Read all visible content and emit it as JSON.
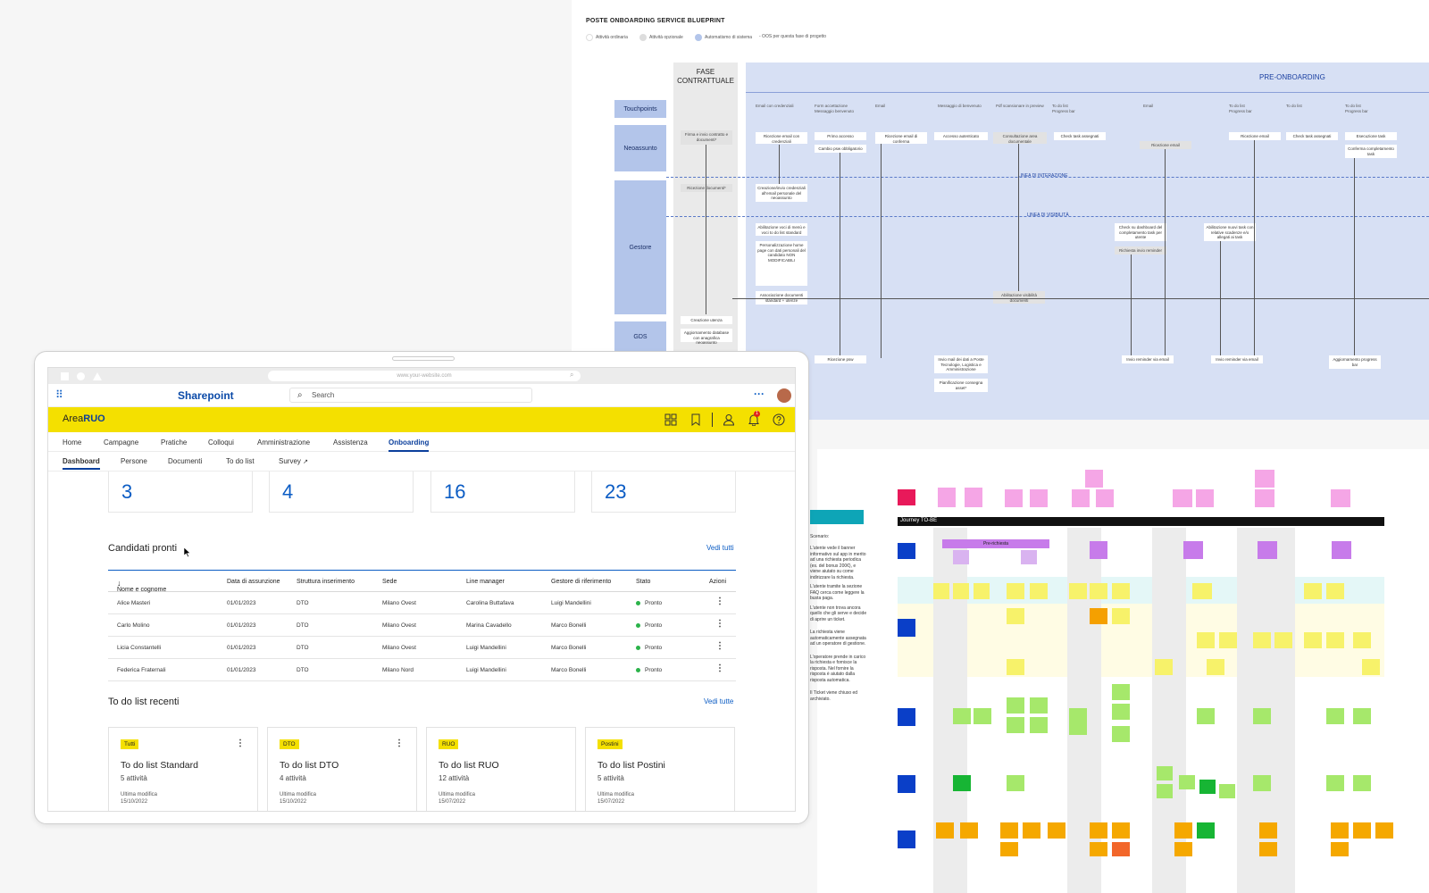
{
  "blueprint": {
    "title": "POSTE ONBOARDING SERVICE BLUEPRINT",
    "legend": [
      "Attività ordinaria",
      "Attività opzionale",
      "Automatismo di sistema",
      "- OOS per questa fase di progetto"
    ],
    "phases": {
      "contract": "FASE CONTRATTUALE",
      "pre": "PRE-ONBOARDING"
    },
    "lanes": [
      "Touchpoints",
      "Neoassunto",
      "Gestore",
      "GDS"
    ],
    "line_interaction": "LINEA DI INTERAZIONE",
    "line_visibility": "LINEA DI VISIBILITÀ",
    "touchpoints": [
      "Email con credenziali",
      "Form accettazione Messaggio benvenuto",
      "Email",
      "Messaggio di benvenuto",
      "Pdf scansionare in preview",
      "To do list Progress bar",
      "Email",
      "To do list Progress bar",
      "To do list",
      "To do list Progress bar"
    ],
    "cards": {
      "c1": "Firma e invio contratto e documenti*",
      "c2": "Ricezione email con credenziali",
      "c3": "Primo accesso",
      "c4": "Cambio psw obbligatorio",
      "c5": "Ricezione email di conferma",
      "c6": "Accesso autenticato",
      "c7": "Consultazione area documentale",
      "c8": "Check task assegnati",
      "c9": "Ricezione email",
      "c10": "Ricezione email",
      "c11": "Check task assegnati",
      "c12": "Esecuzione task",
      "c13": "Conferma completamento task",
      "g1": "Ricezione documenti*",
      "g2": "Creazione/invio credenziali all'email personale del neoassunto",
      "g3": "Abilitazione voci di menù e voci to do list standard",
      "g4": "Personalizzazione home page con dati personali del candidato NON MODIFICABILI",
      "g5": "Associazione documenti standard + utenze",
      "g6": "Check su dashboard del completamento task per utente",
      "g7": "Richiesta invio reminder",
      "g8": "Abilitazione nuovi task con relative scadenze e/o allegati ai task",
      "g9": "Abilitazione visibilità documenti",
      "s1": "Creazione utenza",
      "s2": "Aggiornamento database con anagrafica neoassunto",
      "s3": "Ricezione psw",
      "s4": "Invio mail dei dati a Poste Tecnologie, Logistica e Amministrazione",
      "s5": "Pianificazione consegna asset*",
      "s6": "Invio reminder via email",
      "s7": "Invio reminder via email",
      "s8": "Aggiornamento progress bar"
    }
  },
  "board": {
    "heading": "Journey TO-BE",
    "scenario_title": "Scenario:",
    "scenario": [
      "L'utente vede il banner informativo sul app in merito ad una richiesta periodica (es. del bonus 200€), e viene aiutato su come indirizzare la richiesta.",
      "L'utente tramite la sezione FAQ cerca come leggere la busta paga.",
      "L'utente non trova ancora quello che gli serve e decide di aprire un ticket.",
      "La richiesta viene automaticamente assegnata ad un operatore di gestione.",
      "L'operatore prende in carico la richiesta e fornisce la risposta. Nel fornire la risposta è aiutato dalla risposta automatica.",
      "Il Ticket viene chiuso ed archiviato."
    ],
    "stage": "Pre-richiesta"
  },
  "browser": {
    "url": "www.your-website.com"
  },
  "sharepoint": {
    "title": "Sharepoint",
    "search_placeholder": "Search",
    "more": "···"
  },
  "area": {
    "prefix": "Area",
    "name": "RUO",
    "notification_count": "1"
  },
  "nav": {
    "main": [
      "Home",
      "Campagne",
      "Pratiche",
      "Colloqui",
      "Amministrazione",
      "Assistenza",
      "Onboarding"
    ],
    "sub": [
      "Dashboard",
      "Persone",
      "Documenti",
      "To do list",
      "Survey"
    ]
  },
  "stats": [
    "3",
    "4",
    "16",
    "23"
  ],
  "candidati": {
    "title": "Candidati pronti",
    "link": "Vedi tutti",
    "columns": [
      "Nome e cognome",
      "Data di assunzione",
      "Struttura inserimento",
      "Sede",
      "Line manager",
      "Gestore di riferimento",
      "Stato",
      "Azioni"
    ],
    "rows": [
      [
        "Alice Masteri",
        "01/01/2023",
        "DTO",
        "Milano Ovest",
        "Carolina Buttafava",
        "Luigi Mandellini",
        "Pronto"
      ],
      [
        "Carlo Molino",
        "01/01/2023",
        "DTO",
        "Milano Ovest",
        "Marina Cavadello",
        "Marco Bonelli",
        "Pronto"
      ],
      [
        "Licia Constantelli",
        "01/01/2023",
        "DTO",
        "Milano Ovest",
        "Luigi Mandellini",
        "Marco Bonelli",
        "Pronto"
      ],
      [
        "Federica Fraternali",
        "01/01/2023",
        "DTO",
        "Milano Nord",
        "Luigi Mandellini",
        "Marco Bonelli",
        "Pronto"
      ]
    ]
  },
  "todo": {
    "title": "To do list recenti",
    "link": "Vedi tutte",
    "cards": [
      {
        "tag": "Tutti",
        "title": "To do list Standard",
        "count": "5 attività",
        "modified_label": "Ultima modifica",
        "date": "15/10/2022"
      },
      {
        "tag": "DTO",
        "title": "To do list DTO",
        "count": "4 attività",
        "modified_label": "Ultima modifica",
        "date": "15/10/2022"
      },
      {
        "tag": "RUO",
        "title": "To do list RUO",
        "count": "12 attività",
        "modified_label": "Ultima modifica",
        "date": "15/07/2022"
      },
      {
        "tag": "Postini",
        "title": "To do list Postini",
        "count": "5 attività",
        "modified_label": "Ultima modifica",
        "date": "15/07/2022"
      }
    ]
  },
  "colors": {
    "accent_yellow": "#f4e000",
    "brand_blue": "#0b3f9c",
    "link_blue": "#0b5cc4",
    "status_green": "#2bb34a",
    "lane_blue": "#b3c5ea"
  }
}
